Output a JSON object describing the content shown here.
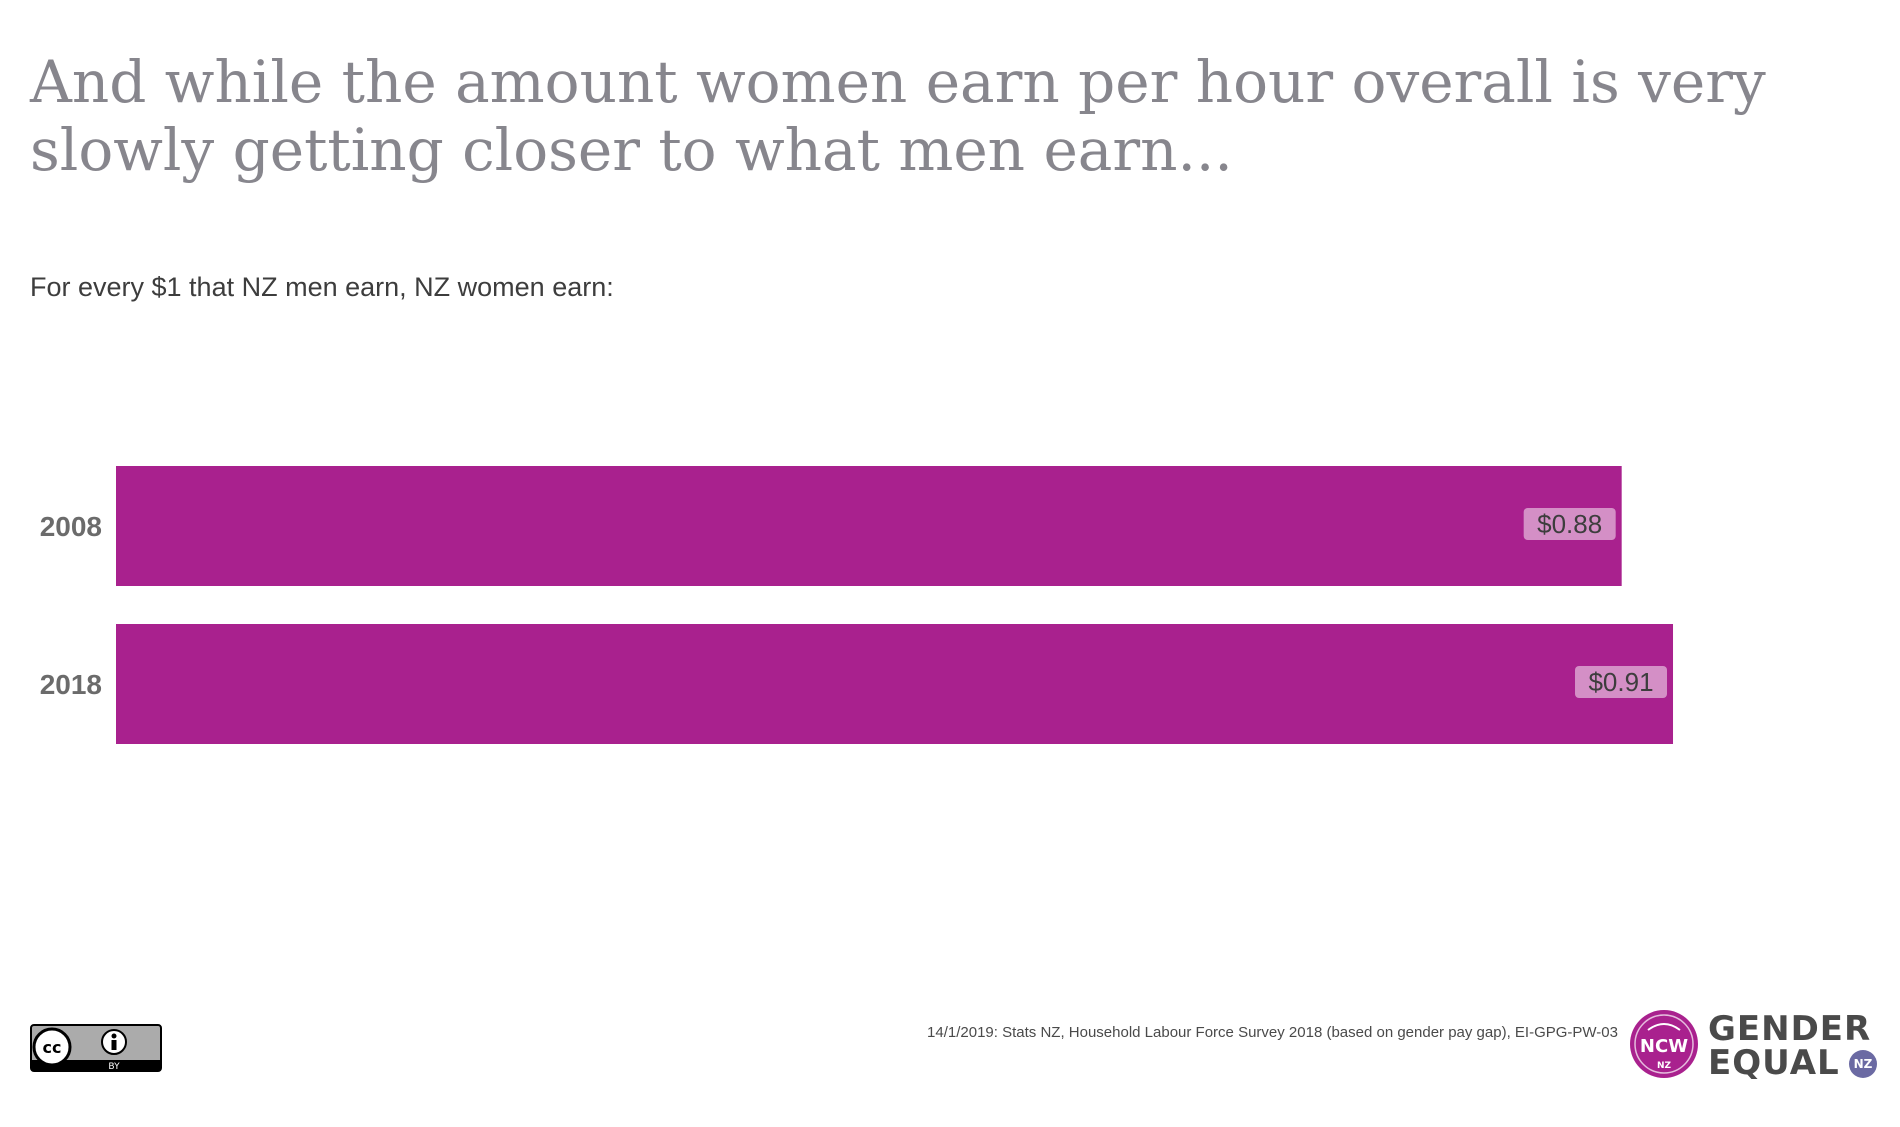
{
  "title": "And while the amount women earn per hour overall is very slowly getting closer to what men earn...",
  "subtitle": "For every $1 that NZ men earn, NZ women earn:",
  "chart_data": {
    "type": "bar",
    "orientation": "horizontal",
    "categories": [
      "2008",
      "2018"
    ],
    "values": [
      0.88,
      0.91
    ],
    "data_labels": [
      "$0.88",
      "$0.91"
    ],
    "xlim": [
      0,
      1
    ],
    "grid": false,
    "bar_color": "#a9218e",
    "label_box_color": "#d48fc6"
  },
  "footer": {
    "source": "14/1/2019: Stats NZ, Household Labour Force Survey 2018 (based on gender pay gap), EI-GPG-PW-03"
  },
  "license_badge": {
    "cc": "cc",
    "by": "BY"
  },
  "logo": {
    "mark_text": "NCW",
    "mark_sub": "NZ",
    "line1": "GENDER",
    "line2": "EQUAL",
    "badge": "NZ",
    "color": "#a9218e"
  }
}
